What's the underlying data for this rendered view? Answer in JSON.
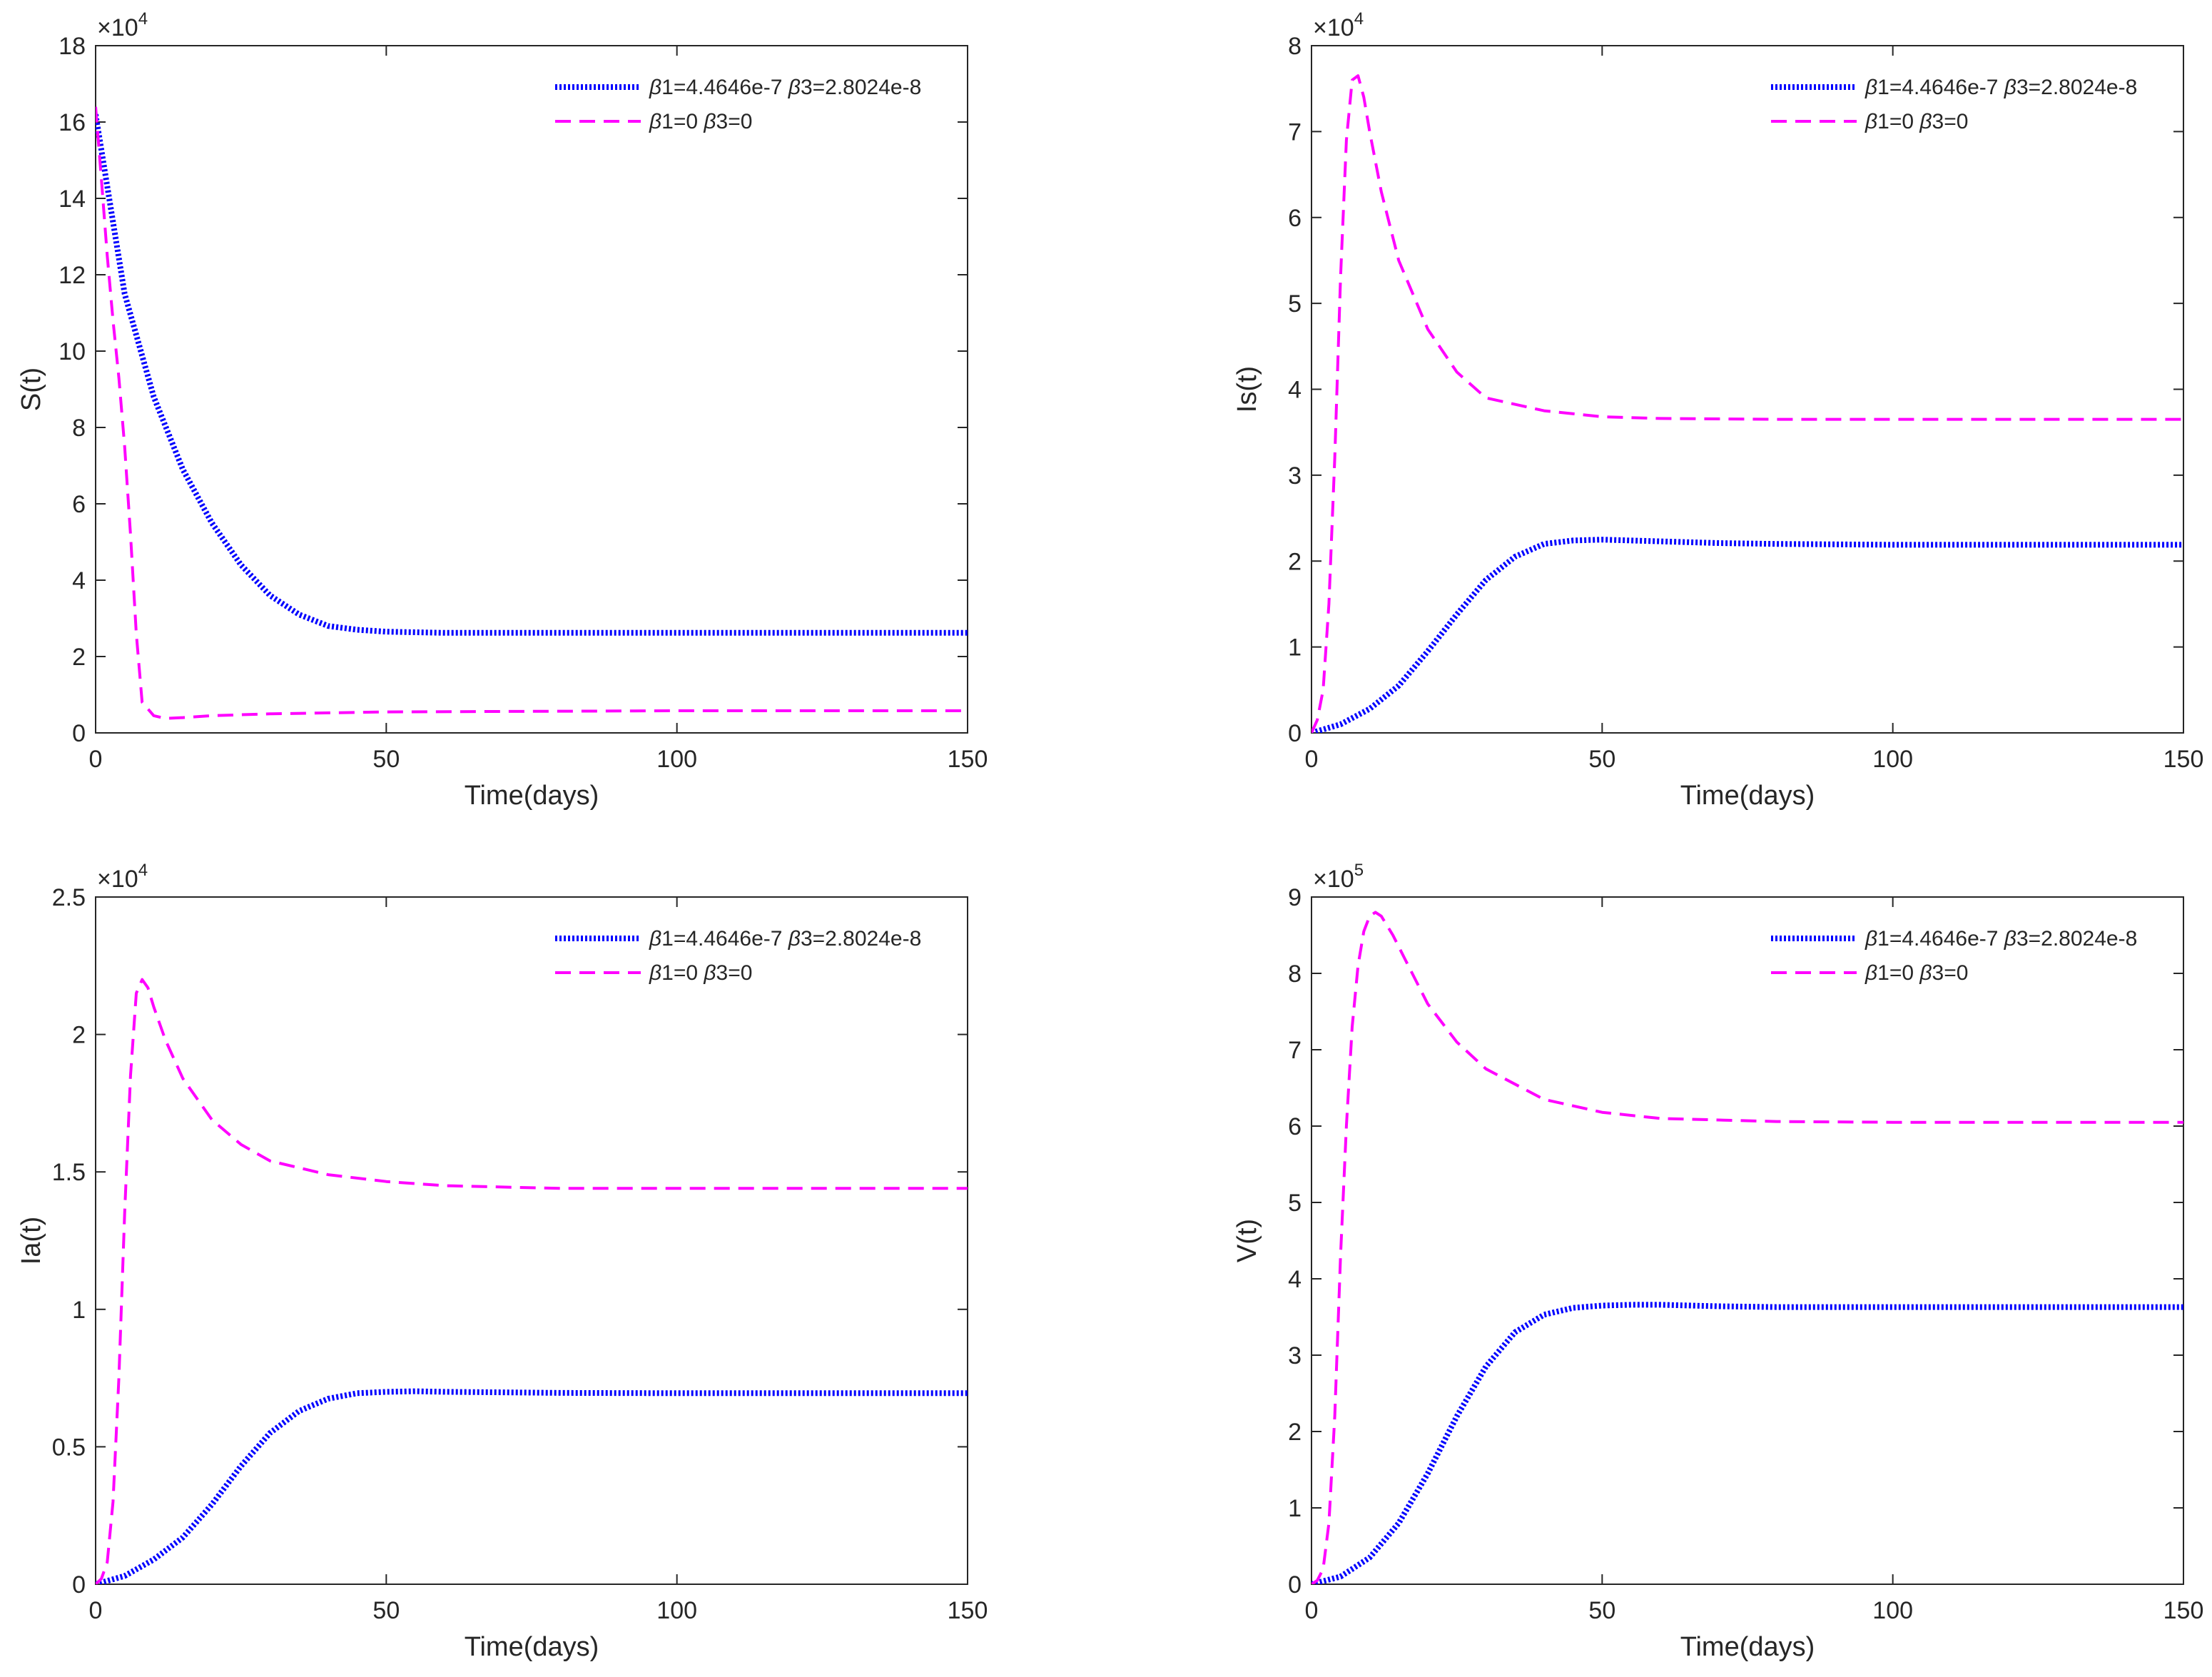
{
  "chart_data": [
    {
      "type": "line",
      "panel": "top-left",
      "xlabel": "Time(days)",
      "ylabel": "S(t)",
      "xlim": [
        0,
        150
      ],
      "ylim": [
        0,
        18
      ],
      "xticks": [
        0,
        50,
        100,
        150
      ],
      "yticks": [
        0,
        2,
        4,
        6,
        8,
        10,
        12,
        14,
        16,
        18
      ],
      "y_multiplier": {
        "base": "×10",
        "exponent": "4"
      },
      "grid": false,
      "legend_position": "top-right",
      "series": [
        {
          "name": "β1=4.4646e-7  β3=2.8024e-8",
          "legend": {
            "b1": "β",
            "t1": "1=4.4646e-7  ",
            "b2": "β",
            "t2": "3=2.8024e-8"
          },
          "color": "#0000ff",
          "style": "dotted",
          "x": [
            0,
            5,
            10,
            15,
            20,
            25,
            30,
            35,
            40,
            45,
            50,
            60,
            70,
            80,
            100,
            125,
            150
          ],
          "y": [
            16.2,
            11.5,
            8.8,
            6.9,
            5.5,
            4.4,
            3.6,
            3.1,
            2.8,
            2.7,
            2.65,
            2.62,
            2.62,
            2.62,
            2.62,
            2.62,
            2.62
          ]
        },
        {
          "name": "β1=0  β3=0",
          "legend": {
            "b1": "β",
            "t1": "1=0  ",
            "b2": "β",
            "t2": "3=0"
          },
          "color": "#ff00ff",
          "style": "dashed",
          "x": [
            0,
            1,
            2,
            3,
            4,
            5,
            6,
            7,
            8,
            10,
            12,
            15,
            20,
            30,
            50,
            100,
            150
          ],
          "y": [
            16.4,
            14.5,
            12.5,
            10.8,
            9.3,
            7.5,
            5.2,
            2.6,
            0.8,
            0.45,
            0.38,
            0.4,
            0.45,
            0.5,
            0.55,
            0.58,
            0.58
          ]
        }
      ]
    },
    {
      "type": "line",
      "panel": "top-right",
      "xlabel": "Time(days)",
      "ylabel": "Is(t)",
      "xlim": [
        0,
        150
      ],
      "ylim": [
        0,
        8
      ],
      "xticks": [
        0,
        50,
        100,
        150
      ],
      "yticks": [
        0,
        1,
        2,
        3,
        4,
        5,
        6,
        7,
        8
      ],
      "y_multiplier": {
        "base": "×10",
        "exponent": "4"
      },
      "grid": false,
      "legend_position": "top-right",
      "series": [
        {
          "name": "β1=4.4646e-7  β3=2.8024e-8",
          "legend": {
            "b1": "β",
            "t1": "1=4.4646e-7  ",
            "b2": "β",
            "t2": "3=2.8024e-8"
          },
          "color": "#0000ff",
          "style": "dotted",
          "x": [
            0,
            5,
            10,
            15,
            20,
            25,
            30,
            35,
            40,
            45,
            50,
            55,
            60,
            70,
            80,
            100,
            125,
            150
          ],
          "y": [
            0,
            0.1,
            0.28,
            0.55,
            0.95,
            1.38,
            1.78,
            2.05,
            2.2,
            2.24,
            2.25,
            2.24,
            2.23,
            2.21,
            2.2,
            2.19,
            2.19,
            2.19
          ]
        },
        {
          "name": "β1=0  β3=0",
          "legend": {
            "b1": "β",
            "t1": "1=0  ",
            "b2": "β",
            "t2": "3=0"
          },
          "color": "#ff00ff",
          "style": "dashed",
          "x": [
            0,
            1,
            2,
            3,
            4,
            5,
            6,
            7,
            8,
            9,
            10,
            12,
            15,
            20,
            25,
            30,
            40,
            50,
            60,
            80,
            100,
            150
          ],
          "y": [
            0,
            0.15,
            0.5,
            1.5,
            3.2,
            5.3,
            6.9,
            7.6,
            7.65,
            7.4,
            7.0,
            6.3,
            5.5,
            4.7,
            4.2,
            3.9,
            3.75,
            3.68,
            3.66,
            3.65,
            3.65,
            3.65
          ]
        }
      ]
    },
    {
      "type": "line",
      "panel": "bottom-left",
      "xlabel": "Time(days)",
      "ylabel": "Ia(t)",
      "xlim": [
        0,
        150
      ],
      "ylim": [
        0,
        2.5
      ],
      "xticks": [
        0,
        50,
        100,
        150
      ],
      "yticks": [
        0,
        0.5,
        1,
        1.5,
        2,
        2.5
      ],
      "y_multiplier": {
        "base": "×10",
        "exponent": "4"
      },
      "grid": false,
      "legend_position": "top-right",
      "series": [
        {
          "name": "β1=4.4646e-7  β3=2.8024e-8",
          "legend": {
            "b1": "β",
            "t1": "1=4.4646e-7  ",
            "b2": "β",
            "t2": "3=2.8024e-8"
          },
          "color": "#0000ff",
          "style": "dotted",
          "x": [
            0,
            5,
            10,
            15,
            20,
            25,
            30,
            35,
            40,
            45,
            50,
            55,
            60,
            70,
            80,
            100,
            125,
            150
          ],
          "y": [
            0,
            0.03,
            0.09,
            0.17,
            0.29,
            0.43,
            0.55,
            0.63,
            0.675,
            0.695,
            0.7,
            0.702,
            0.7,
            0.698,
            0.696,
            0.695,
            0.695,
            0.695
          ]
        },
        {
          "name": "β1=0  β3=0",
          "legend": {
            "b1": "β",
            "t1": "1=0  ",
            "b2": "β",
            "t2": "3=0"
          },
          "color": "#ff00ff",
          "style": "dashed",
          "x": [
            0,
            1,
            2,
            3,
            4,
            5,
            6,
            7,
            8,
            9,
            10,
            12,
            15,
            20,
            25,
            30,
            40,
            50,
            60,
            80,
            100,
            150
          ],
          "y": [
            0,
            0.02,
            0.08,
            0.3,
            0.75,
            1.35,
            1.85,
            2.15,
            2.2,
            2.17,
            2.1,
            1.98,
            1.84,
            1.69,
            1.6,
            1.54,
            1.49,
            1.465,
            1.45,
            1.44,
            1.44,
            1.44
          ]
        }
      ]
    },
    {
      "type": "line",
      "panel": "bottom-right",
      "xlabel": "Time(days)",
      "ylabel": "V(t)",
      "xlim": [
        0,
        150
      ],
      "ylim": [
        0,
        9
      ],
      "xticks": [
        0,
        50,
        100,
        150
      ],
      "yticks": [
        0,
        1,
        2,
        3,
        4,
        5,
        6,
        7,
        8,
        9
      ],
      "y_multiplier": {
        "base": "×10",
        "exponent": "5"
      },
      "grid": false,
      "legend_position": "top-right",
      "series": [
        {
          "name": "β1=4.4646e-7  β3=2.8024e-8",
          "legend": {
            "b1": "β",
            "t1": "1=4.4646e-7  ",
            "b2": "β",
            "t2": "3=2.8024e-8"
          },
          "color": "#0000ff",
          "style": "dotted",
          "x": [
            0,
            5,
            10,
            15,
            20,
            25,
            30,
            35,
            40,
            45,
            50,
            55,
            60,
            70,
            80,
            100,
            125,
            150
          ],
          "y": [
            0,
            0.1,
            0.35,
            0.8,
            1.45,
            2.2,
            2.85,
            3.3,
            3.53,
            3.62,
            3.65,
            3.66,
            3.66,
            3.64,
            3.63,
            3.63,
            3.63,
            3.63
          ]
        },
        {
          "name": "β1=0  β3=0",
          "legend": {
            "b1": "β",
            "t1": "1=0  ",
            "b2": "β",
            "t2": "3=0"
          },
          "color": "#ff00ff",
          "style": "dashed",
          "x": [
            0,
            1,
            2,
            3,
            4,
            5,
            6,
            7,
            8,
            9,
            10,
            11,
            12,
            14,
            16,
            20,
            25,
            30,
            40,
            50,
            60,
            80,
            100,
            150
          ],
          "y": [
            0,
            0.05,
            0.2,
            0.8,
            2.2,
            4.3,
            6.0,
            7.3,
            8.1,
            8.55,
            8.75,
            8.8,
            8.75,
            8.5,
            8.2,
            7.6,
            7.1,
            6.75,
            6.35,
            6.18,
            6.1,
            6.06,
            6.05,
            6.05
          ]
        }
      ]
    }
  ]
}
